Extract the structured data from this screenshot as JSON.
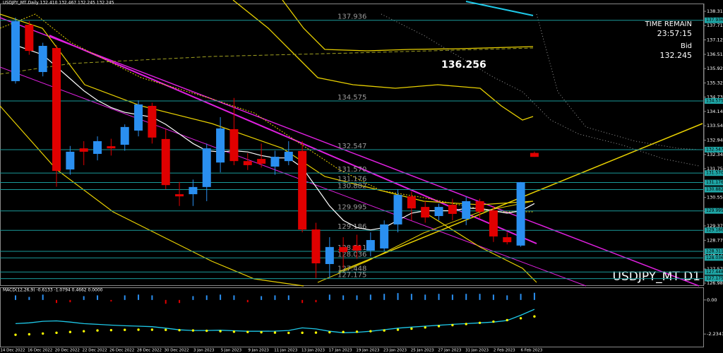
{
  "chart_data": {
    "type": "candlestick",
    "title": "USDJPY_MT,Daily  132.410 132.467 132.245 132.245",
    "watermark": "USDJPY_MT D1",
    "info": {
      "time_label": "TIME REMAIN",
      "time": "23:57:15",
      "bid_label": "Bid",
      "bid": "132.245"
    },
    "cloud_label": "136.256",
    "categories": [
      "14 Dec 2022",
      null,
      "16 Dec 2022",
      null,
      "20 Dec 2022",
      null,
      "22 Dec 2022",
      null,
      "26 Dec 2022",
      null,
      "28 Dec 2022",
      null,
      "30 Dec 2022",
      null,
      "3 Jan 2023",
      null,
      "5 Jan 2023",
      null,
      "9 Jan 2023",
      null,
      "11 Jan 2023",
      null,
      "13 Jan 2023",
      null,
      "17 Jan 2023",
      null,
      "19 Jan 2023",
      null,
      "23 Jan 2023",
      null,
      "25 Jan 2023",
      null,
      "27 Jan 2023",
      null,
      "31 Jan 2023",
      null,
      "2 Feb 2023",
      null,
      "6 Feb 2023"
    ],
    "open": [
      135.4,
      137.75,
      135.78,
      136.78,
      131.72,
      132.6,
      132.37,
      132.69,
      132.75,
      133.34,
      134.37,
      132.99,
      130.69,
      130.69,
      130.99,
      132.01,
      133.4,
      132.07,
      132.16,
      131.84,
      132.07,
      132.49,
      129.22,
      127.78,
      128.49,
      128.55,
      128.34,
      128.43,
      129.43,
      130.6,
      130.16,
      129.78,
      130.25,
      129.66,
      130.4,
      130.02,
      128.9,
      128.55,
      132.41
    ],
    "high": [
      138.05,
      137.9,
      137.0,
      136.9,
      132.7,
      132.9,
      133.1,
      133.0,
      133.6,
      134.6,
      134.5,
      133.4,
      131.2,
      131.3,
      132.8,
      133.9,
      134.7,
      132.4,
      132.8,
      132.5,
      132.9,
      132.9,
      129.5,
      128.9,
      128.9,
      129.0,
      129.1,
      129.6,
      130.9,
      130.8,
      130.4,
      130.3,
      130.5,
      130.6,
      130.5,
      130.2,
      129.1,
      131.2,
      132.467
    ],
    "low": [
      135.3,
      136.5,
      135.6,
      131.0,
      131.5,
      131.9,
      132.1,
      132.3,
      132.5,
      133.1,
      132.8,
      130.9,
      130.2,
      130.2,
      130.4,
      131.6,
      131.9,
      131.7,
      131.8,
      131.5,
      131.9,
      129.1,
      127.2,
      127.2,
      127.6,
      128.0,
      128.1,
      128.3,
      129.1,
      129.6,
      129.5,
      129.6,
      129.6,
      129.4,
      129.7,
      128.7,
      128.6,
      128.5,
      132.245
    ],
    "close": [
      137.9,
      136.66,
      136.87,
      131.66,
      132.46,
      132.46,
      132.9,
      132.6,
      133.49,
      134.43,
      133.05,
      131.07,
      130.6,
      130.99,
      132.6,
      133.43,
      132.07,
      131.9,
      131.96,
      132.25,
      132.46,
      129.22,
      127.81,
      128.49,
      128.28,
      128.34,
      128.78,
      129.43,
      130.66,
      130.1,
      129.72,
      130.16,
      129.87,
      130.4,
      129.96,
      128.93,
      128.69,
      131.19,
      132.245
    ],
    "up_color": "#2a8ff0",
    "down_color": "#e00000",
    "ma": {
      "color": "#ffffff",
      "values": [
        136.9,
        136.7,
        136.5,
        136.0,
        135.5,
        135.0,
        134.6,
        134.3,
        134.1,
        134.0,
        133.9,
        133.6,
        133.2,
        132.8,
        132.5,
        132.45,
        132.5,
        132.45,
        132.3,
        132.2,
        132.2,
        131.8,
        131.0,
        130.2,
        129.6,
        129.3,
        129.2,
        129.3,
        129.6,
        129.9,
        130.0,
        130.0,
        130.0,
        130.1,
        130.1,
        130.0,
        129.9,
        130.0,
        130.3
      ]
    },
    "ylim": [
      126.898,
      138.634
    ],
    "yticks": [
      {
        "value": 138.31,
        "label": "138.310"
      },
      {
        "value": 137.715,
        "label": "137.715"
      },
      {
        "value": 137.12,
        "label": "137.120"
      },
      {
        "value": 136.516,
        "label": "136.516"
      },
      {
        "value": 135.925,
        "label": "135.925"
      },
      {
        "value": 135.325,
        "label": "135.325"
      },
      {
        "value": 134.735,
        "label": "134.735"
      },
      {
        "value": 134.14,
        "label": "134.140"
      },
      {
        "value": 133.54,
        "label": "133.540"
      },
      {
        "value": 132.94,
        "label": "132.940"
      },
      {
        "value": 132.345,
        "label": "132.345"
      },
      {
        "value": 131.755,
        "label": "131.755"
      },
      {
        "value": 131.16,
        "label": "131.160"
      },
      {
        "value": 130.555,
        "label": "130.555"
      },
      {
        "value": 129.965,
        "label": "129.965"
      },
      {
        "value": 129.37,
        "label": "129.370"
      },
      {
        "value": 128.77,
        "label": "128.770"
      },
      {
        "value": 128.175,
        "label": "128.175"
      },
      {
        "value": 127.575,
        "label": "127.575"
      },
      {
        "value": 126.985,
        "label": "126.985"
      }
    ],
    "levels": [
      {
        "value": 137.936,
        "label": "137.936"
      },
      {
        "value": 134.575,
        "label": "134.575"
      },
      {
        "value": 132.547,
        "label": "132.547"
      },
      {
        "value": 131.57,
        "label": "131.570"
      },
      {
        "value": 131.176,
        "label": "131.176"
      },
      {
        "value": 130.882,
        "label": "130.882"
      },
      {
        "value": 129.995,
        "label": "129.995"
      },
      {
        "value": 129.186,
        "label": "129.186"
      },
      {
        "value": 128.311,
        "label": "128.311"
      },
      {
        "value": 128.036,
        "label": "128.036"
      },
      {
        "value": 127.448,
        "label": "127.448"
      },
      {
        "value": 127.175,
        "label": "127.175"
      }
    ],
    "macd": {
      "title": "MACD(12,26,9) -0.6133 -1.0794 0.4662 0.0000",
      "ylim": [
        -3.06,
        0.78
      ],
      "yticks": [
        {
          "value": 0,
          "label": "0.00"
        },
        -2.2341
      ],
      "line_color": "#1ec8e8",
      "signal_color": "#ffff00",
      "hist": [
        0.3,
        0.2,
        0.35,
        -0.2,
        -0.15,
        0.25,
        0.3,
        -0.1,
        0.3,
        0.35,
        0.3,
        -0.25,
        -0.2,
        0.25,
        0.3,
        0.35,
        0.3,
        -0.15,
        0.25,
        0.3,
        0.3,
        -0.2,
        -0.15,
        0.35,
        0.3,
        0.3,
        0.35,
        0.4,
        0.45,
        0.4,
        0.35,
        0.4,
        0.35,
        0.4,
        0.4,
        0.35,
        0.3,
        0.4,
        0.47
      ],
      "line": [
        -1.55,
        -1.5,
        -1.4,
        -1.37,
        -1.45,
        -1.55,
        -1.6,
        -1.65,
        -1.69,
        -1.72,
        -1.75,
        -1.85,
        -1.96,
        -2.0,
        -2.0,
        -1.98,
        -2.02,
        -2.05,
        -2.05,
        -2.04,
        -2.0,
        -1.83,
        -1.9,
        -2.05,
        -2.15,
        -2.12,
        -2.05,
        -1.95,
        -1.85,
        -1.78,
        -1.72,
        -1.66,
        -1.6,
        -1.55,
        -1.5,
        -1.45,
        -1.35,
        -1.0,
        -0.6133
      ],
      "signal": [
        -2.28,
        -2.25,
        -2.2,
        -2.15,
        -2.1,
        -2.05,
        -2.0,
        -1.98,
        -1.96,
        -1.95,
        -1.95,
        -1.96,
        -1.98,
        -2.0,
        -2.02,
        -2.05,
        -2.08,
        -2.1,
        -2.12,
        -2.14,
        -2.16,
        -2.15,
        -2.14,
        -2.12,
        -2.1,
        -2.08,
        -2.05,
        -2.0,
        -1.95,
        -1.88,
        -1.8,
        -1.72,
        -1.65,
        -1.58,
        -1.5,
        -1.42,
        -1.32,
        -1.2,
        -1.0794
      ]
    }
  }
}
